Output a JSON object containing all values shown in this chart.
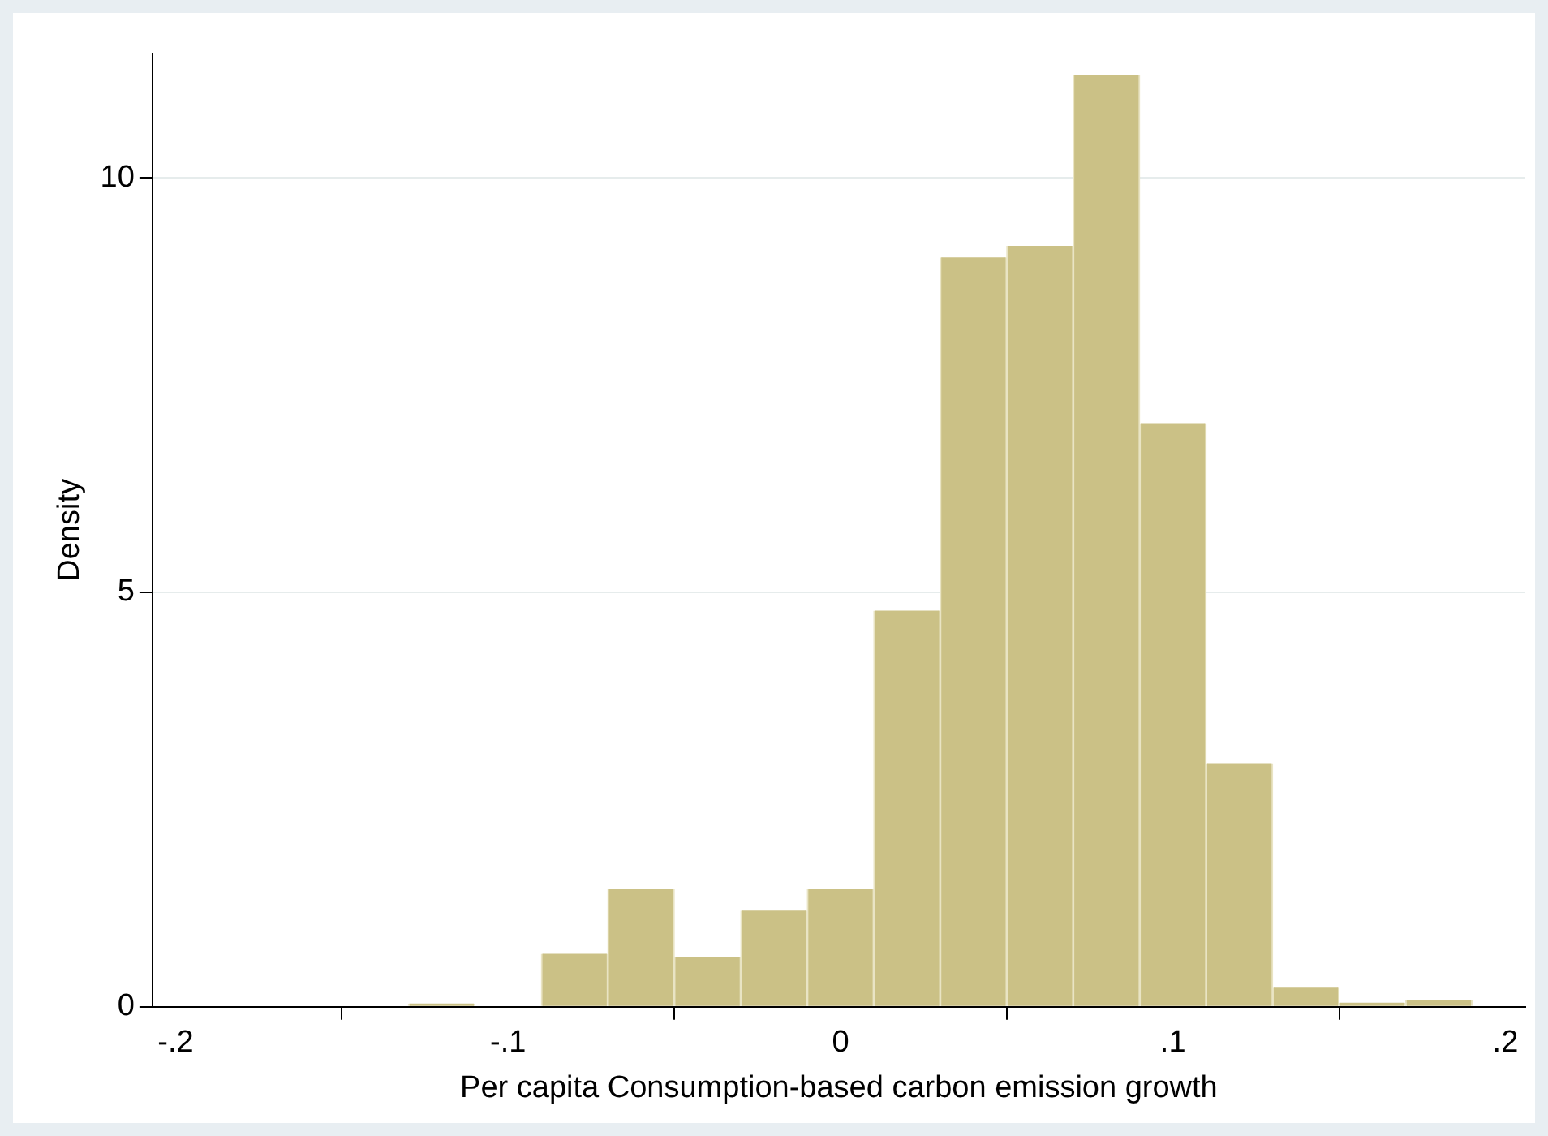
{
  "chart_data": {
    "type": "histogram",
    "xlabel": "Per capita Consumption-based carbon emission growth",
    "ylabel": "Density",
    "bins": [
      -0.13,
      -0.11,
      -0.09,
      -0.07,
      -0.05,
      -0.03,
      -0.01,
      0.01,
      0.03,
      0.05,
      0.07,
      0.09,
      0.11,
      0.13,
      0.15,
      0.17,
      0.19
    ],
    "values": [
      0.04,
      0,
      0.64,
      1.42,
      0.6,
      1.16,
      1.42,
      4.78,
      9.04,
      9.18,
      11.24,
      7.04,
      2.94,
      0.24,
      0.05,
      0.08
    ],
    "color": "#cbc186",
    "xlim": [
      -0.207,
      0.206
    ],
    "xticks": [
      {
        "value": -0.2,
        "label": "-.2"
      },
      {
        "value": -0.1,
        "label": "-.1"
      },
      0,
      {
        "value": 0.1,
        "label": ".1"
      },
      {
        "value": 0.2,
        "label": ".2"
      }
    ],
    "ylim": [
      0,
      11.5
    ],
    "yticks": [
      0,
      5,
      10
    ],
    "grid": "y",
    "legend": false
  }
}
